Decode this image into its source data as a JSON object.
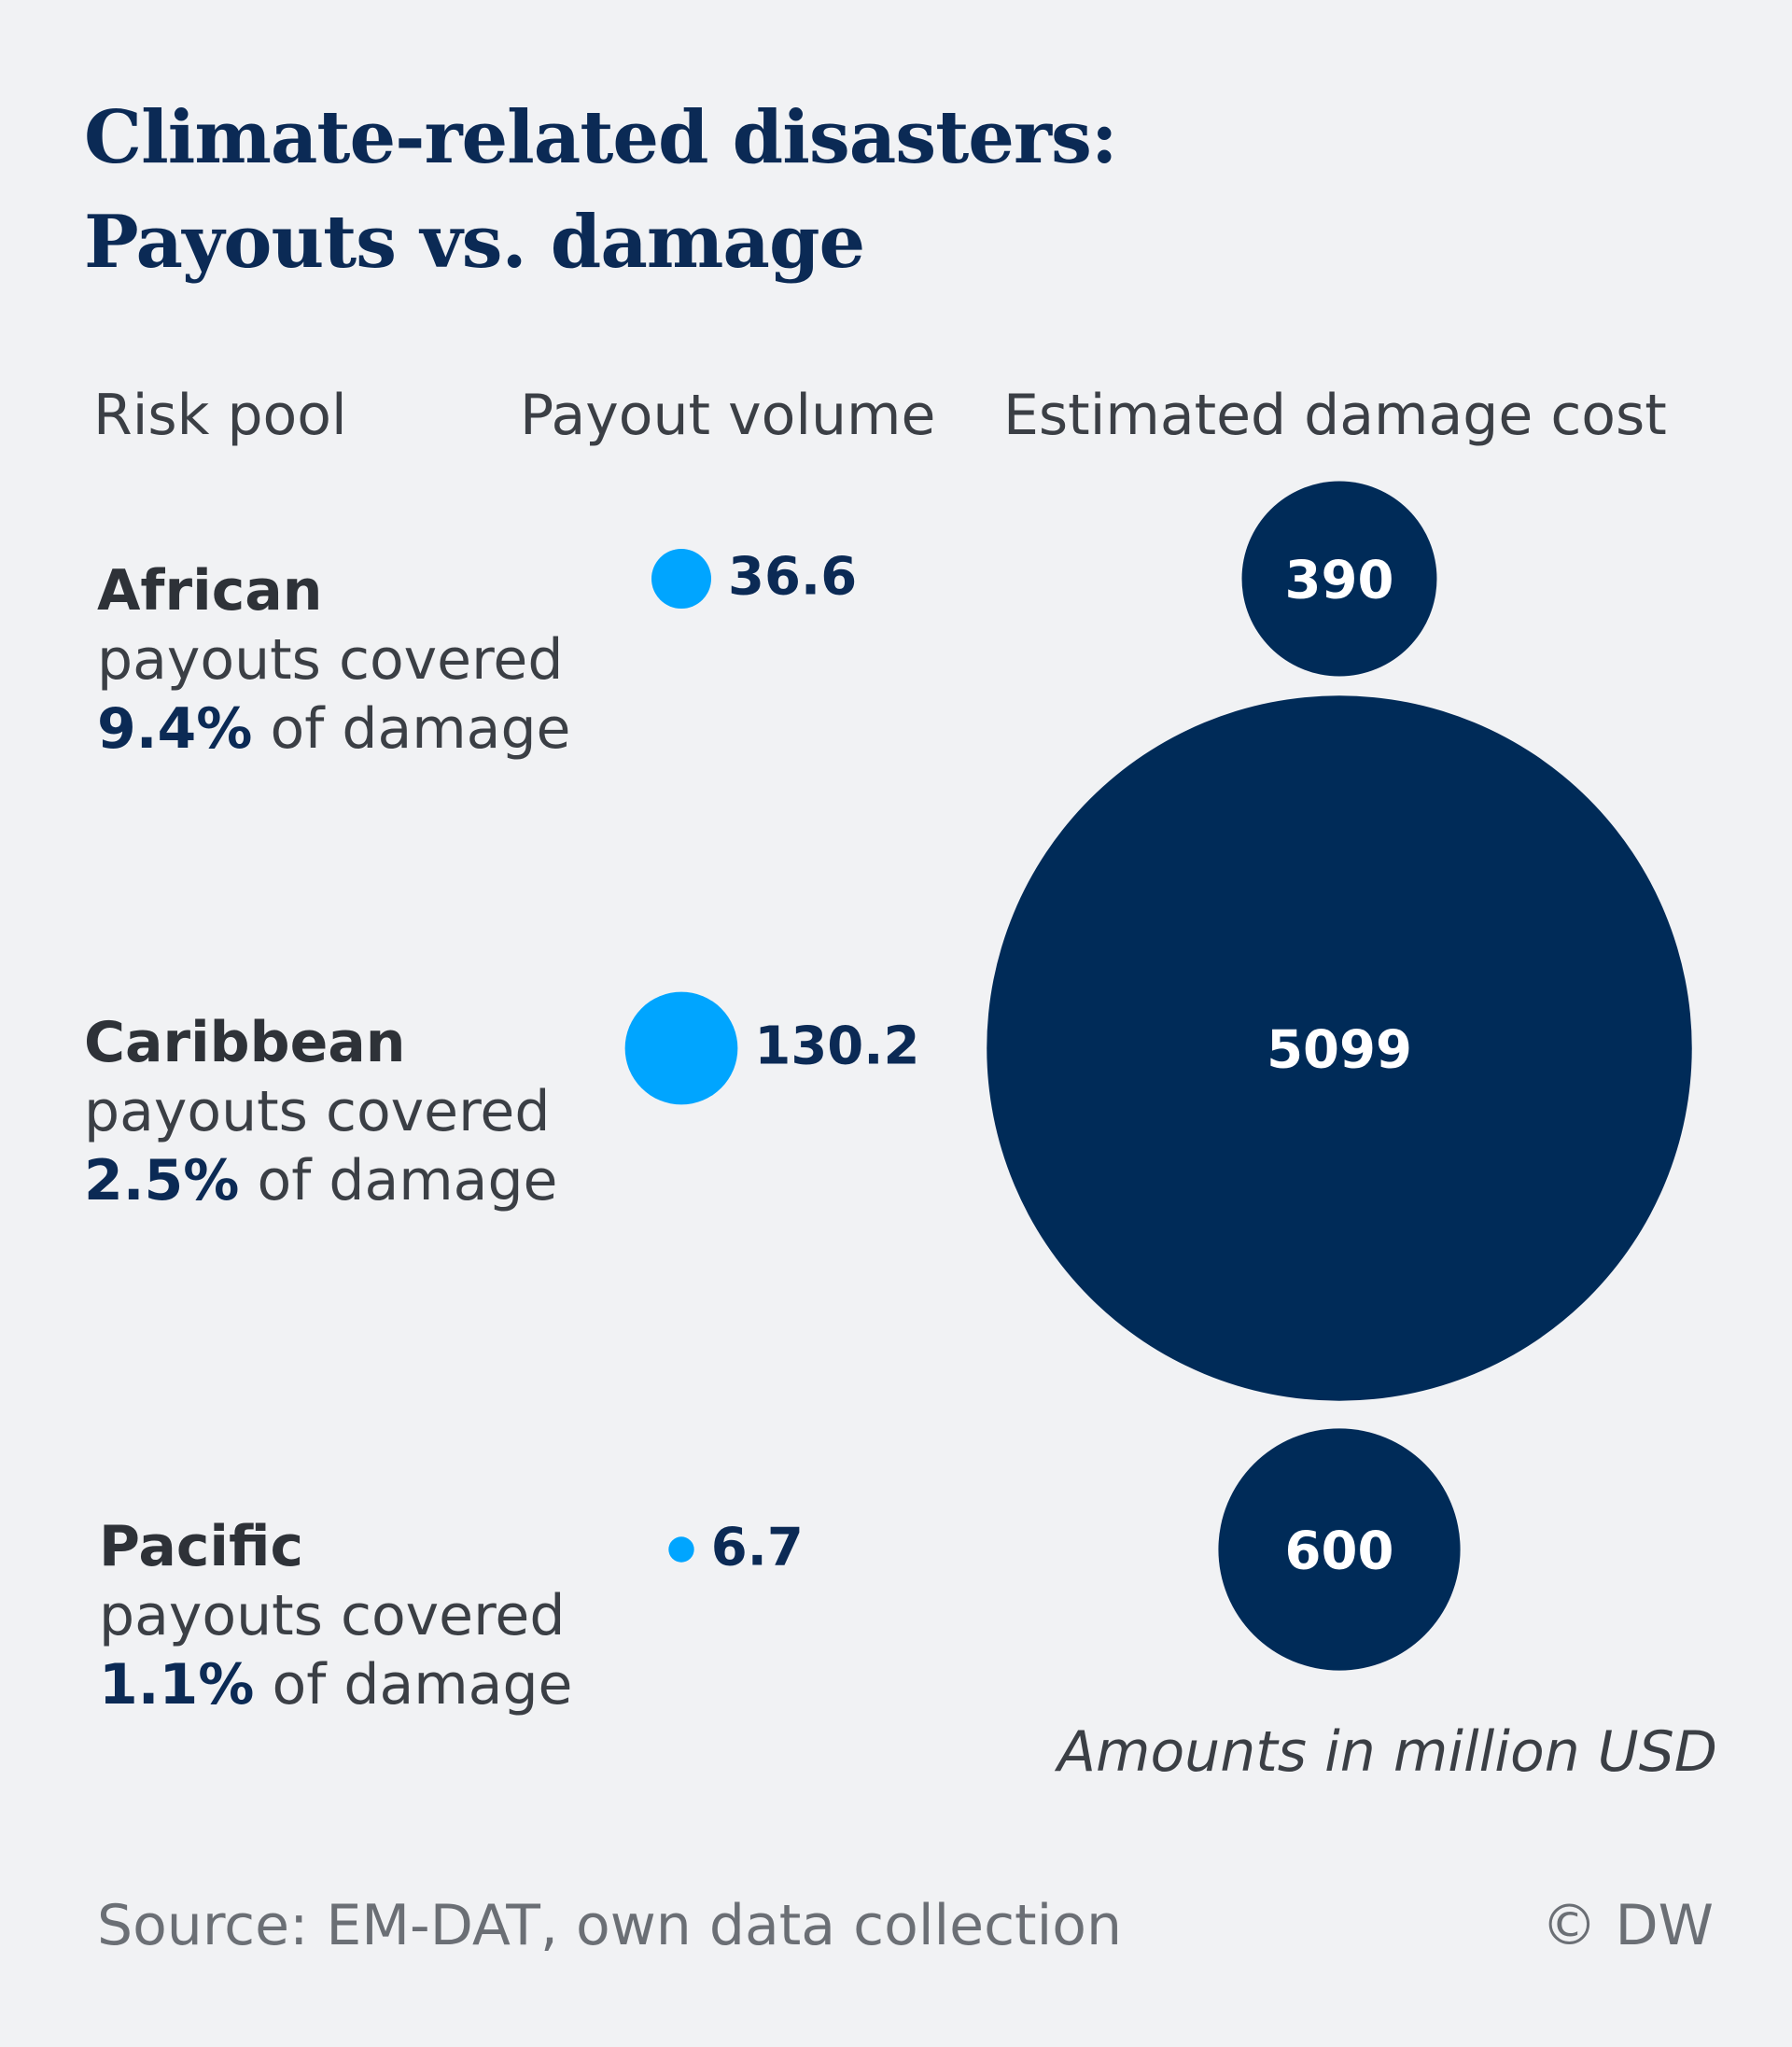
{
  "header": {
    "title_line1": "Climate-related disasters:",
    "title_line2": "Payouts vs. damage"
  },
  "columns": {
    "risk_pool": "Risk pool",
    "payout_volume": "Payout volume",
    "damage_cost": "Estimated damage cost"
  },
  "pools": [
    {
      "name": "African",
      "line1": "payouts covered",
      "pct": "9.4%",
      "suffix": " of damage"
    },
    {
      "name": "Caribbean",
      "line1": "payouts covered",
      "pct": "2.5%",
      "suffix": " of damage"
    },
    {
      "name": "Pacific",
      "line1": "payouts covered",
      "pct": "1.1%",
      "suffix": " of damage"
    }
  ],
  "footer": {
    "note": "Amounts in million USD",
    "source": "Source: EM-DAT, own data collection",
    "credit": "© DW"
  },
  "colors": {
    "payout": "#00a5ff",
    "damage": "#002b58",
    "title": "#0b2a55",
    "background": "#f1f2f4"
  },
  "chart_data": {
    "type": "bubble",
    "unit": "million USD",
    "categories": [
      "African",
      "Caribbean",
      "Pacific"
    ],
    "series": [
      {
        "name": "Payout volume",
        "values": [
          36.6,
          130.2,
          6.7
        ],
        "labels": [
          "36.6",
          "130.2",
          "6.7"
        ]
      },
      {
        "name": "Estimated damage cost",
        "values": [
          390,
          5099,
          600
        ],
        "labels": [
          "390",
          "5099",
          "600"
        ]
      }
    ],
    "coverage_percent": [
      9.4,
      2.5,
      1.1
    ]
  }
}
